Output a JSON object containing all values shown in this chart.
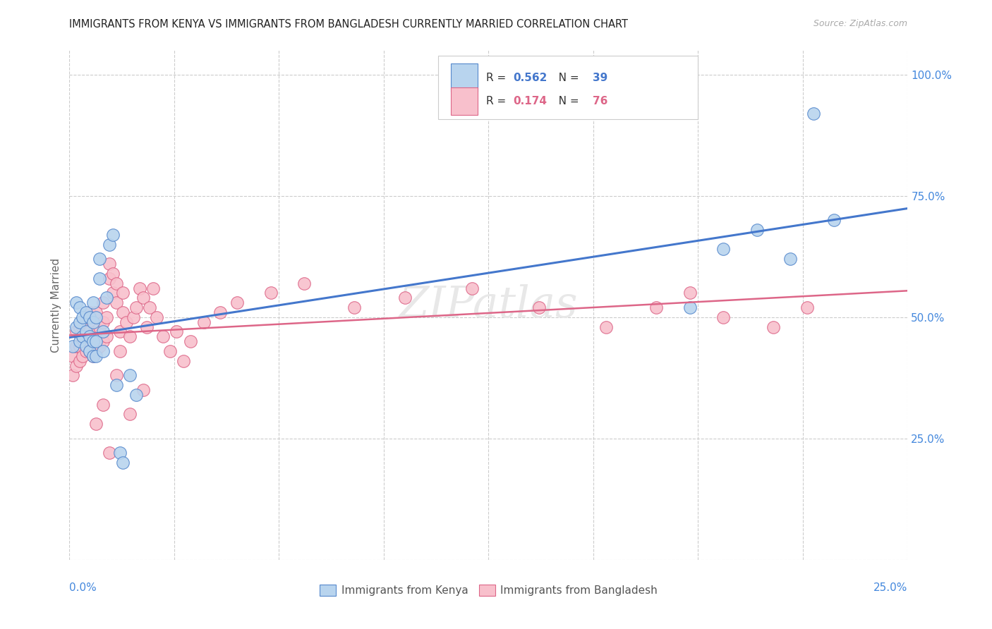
{
  "title": "IMMIGRANTS FROM KENYA VS IMMIGRANTS FROM BANGLADESH CURRENTLY MARRIED CORRELATION CHART",
  "source": "Source: ZipAtlas.com",
  "ylabel": "Currently Married",
  "xlim": [
    0.0,
    0.25
  ],
  "ylim": [
    0.0,
    1.05
  ],
  "kenya_R": 0.562,
  "kenya_N": 39,
  "bangladesh_R": 0.174,
  "bangladesh_N": 76,
  "kenya_color": "#b8d4ee",
  "kenya_edge_color": "#5588cc",
  "kenya_line_color": "#4477cc",
  "bangladesh_color": "#f8c0cc",
  "bangladesh_edge_color": "#dd6688",
  "bangladesh_line_color": "#dd6688",
  "background_color": "#ffffff",
  "grid_color": "#cccccc",
  "title_color": "#222222",
  "right_axis_color": "#4488dd",
  "watermark_color": "#dddddd",
  "kenya_x": [
    0.001,
    0.002,
    0.002,
    0.003,
    0.003,
    0.003,
    0.004,
    0.004,
    0.005,
    0.005,
    0.005,
    0.006,
    0.006,
    0.006,
    0.007,
    0.007,
    0.007,
    0.007,
    0.008,
    0.008,
    0.008,
    0.009,
    0.009,
    0.01,
    0.01,
    0.011,
    0.012,
    0.013,
    0.014,
    0.015,
    0.016,
    0.018,
    0.02,
    0.185,
    0.195,
    0.205,
    0.215,
    0.222,
    0.228
  ],
  "kenya_y": [
    0.44,
    0.48,
    0.53,
    0.45,
    0.49,
    0.52,
    0.46,
    0.5,
    0.44,
    0.47,
    0.51,
    0.43,
    0.46,
    0.5,
    0.42,
    0.45,
    0.49,
    0.53,
    0.42,
    0.45,
    0.5,
    0.58,
    0.62,
    0.43,
    0.47,
    0.54,
    0.65,
    0.67,
    0.36,
    0.22,
    0.2,
    0.38,
    0.34,
    0.52,
    0.64,
    0.68,
    0.62,
    0.92,
    0.7
  ],
  "bangladesh_x": [
    0.001,
    0.001,
    0.002,
    0.002,
    0.002,
    0.003,
    0.003,
    0.003,
    0.004,
    0.004,
    0.004,
    0.005,
    0.005,
    0.005,
    0.006,
    0.006,
    0.006,
    0.007,
    0.007,
    0.007,
    0.008,
    0.008,
    0.008,
    0.009,
    0.009,
    0.01,
    0.01,
    0.01,
    0.011,
    0.011,
    0.012,
    0.012,
    0.013,
    0.013,
    0.014,
    0.014,
    0.015,
    0.015,
    0.016,
    0.016,
    0.017,
    0.018,
    0.019,
    0.02,
    0.021,
    0.022,
    0.023,
    0.024,
    0.025,
    0.026,
    0.028,
    0.03,
    0.032,
    0.034,
    0.036,
    0.04,
    0.045,
    0.05,
    0.06,
    0.07,
    0.085,
    0.1,
    0.12,
    0.14,
    0.16,
    0.175,
    0.185,
    0.195,
    0.21,
    0.22,
    0.008,
    0.01,
    0.012,
    0.014,
    0.018,
    0.022
  ],
  "bangladesh_y": [
    0.38,
    0.42,
    0.4,
    0.44,
    0.47,
    0.41,
    0.44,
    0.48,
    0.42,
    0.45,
    0.48,
    0.43,
    0.46,
    0.49,
    0.43,
    0.47,
    0.51,
    0.42,
    0.45,
    0.49,
    0.43,
    0.47,
    0.51,
    0.44,
    0.48,
    0.45,
    0.49,
    0.53,
    0.46,
    0.5,
    0.58,
    0.61,
    0.55,
    0.59,
    0.53,
    0.57,
    0.43,
    0.47,
    0.51,
    0.55,
    0.49,
    0.46,
    0.5,
    0.52,
    0.56,
    0.54,
    0.48,
    0.52,
    0.56,
    0.5,
    0.46,
    0.43,
    0.47,
    0.41,
    0.45,
    0.49,
    0.51,
    0.53,
    0.55,
    0.57,
    0.52,
    0.54,
    0.56,
    0.52,
    0.48,
    0.52,
    0.55,
    0.5,
    0.48,
    0.52,
    0.28,
    0.32,
    0.22,
    0.38,
    0.3,
    0.35
  ]
}
